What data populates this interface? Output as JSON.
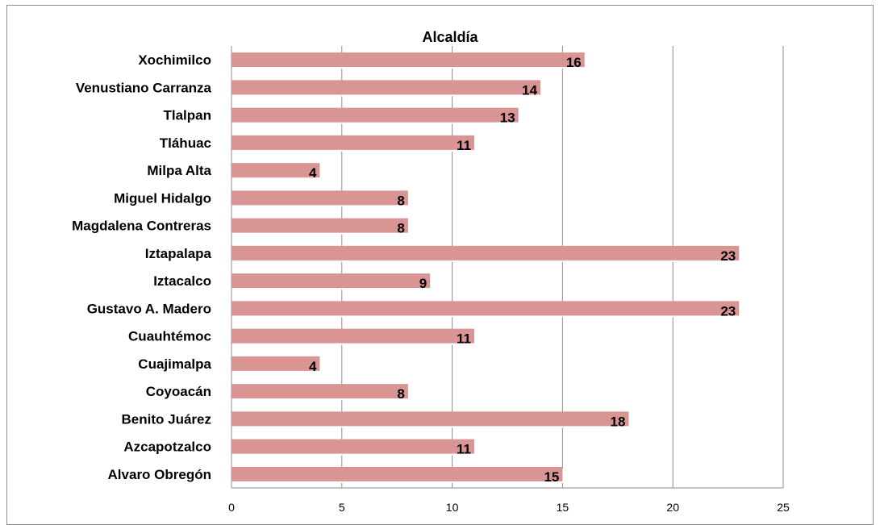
{
  "chart_data": {
    "type": "bar",
    "orientation": "horizontal",
    "title": "Alcaldía",
    "categories": [
      "Alvaro Obregón",
      "Azcapotzalco",
      "Benito Juárez",
      "Coyoacán",
      "Cuajimalpa",
      "Cuauhtémoc",
      "Gustavo A. Madero",
      "Iztacalco",
      "Iztapalapa",
      "Magdalena Contreras",
      "Miguel Hidalgo",
      "Milpa Alta",
      "Tláhuac",
      "Tlalpan",
      "Venustiano Carranza",
      "Xochimilco"
    ],
    "values": [
      15,
      11,
      18,
      8,
      4,
      11,
      23,
      9,
      23,
      8,
      8,
      4,
      11,
      13,
      14,
      16
    ],
    "xlim": [
      0,
      25
    ],
    "xticks": [
      "0",
      "5",
      "10",
      "15",
      "20",
      "25"
    ],
    "grid": true,
    "bar_color": "#d99594",
    "legend": "none"
  }
}
